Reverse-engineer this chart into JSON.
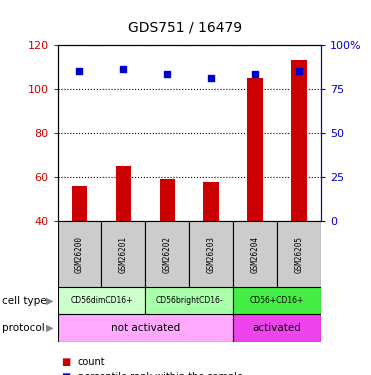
{
  "title": "GDS751 / 16479",
  "samples": [
    "GSM26200",
    "GSM26201",
    "GSM26202",
    "GSM26203",
    "GSM26204",
    "GSM26205"
  ],
  "counts": [
    56,
    65,
    59,
    58,
    105,
    113
  ],
  "percentile_ranks": [
    108,
    109,
    107,
    105,
    107,
    108
  ],
  "ylim_left": [
    40,
    120
  ],
  "ylim_right": [
    0,
    100
  ],
  "yticks_left": [
    40,
    60,
    80,
    100,
    120
  ],
  "yticks_right": [
    0,
    25,
    50,
    75,
    100
  ],
  "ytick_labels_right": [
    "0",
    "25",
    "50",
    "75",
    "100%"
  ],
  "cell_type_groups": [
    {
      "label": "CD56dimCD16+",
      "span": [
        0,
        2
      ],
      "color": "#ccffcc"
    },
    {
      "label": "CD56brightCD16-",
      "span": [
        2,
        4
      ],
      "color": "#aaffaa"
    },
    {
      "label": "CD56+CD16+",
      "span": [
        4,
        6
      ],
      "color": "#44ee44"
    }
  ],
  "protocol_groups": [
    {
      "label": "not activated",
      "span": [
        0,
        4
      ],
      "color": "#ffaaff"
    },
    {
      "label": "activated",
      "span": [
        4,
        6
      ],
      "color": "#ee44ee"
    }
  ],
  "bar_color": "#cc0000",
  "dot_color": "#0000cc",
  "sample_box_color": "#cccccc",
  "left_axis_color": "#cc0000",
  "right_axis_color": "#0000cc",
  "bar_width": 0.35
}
